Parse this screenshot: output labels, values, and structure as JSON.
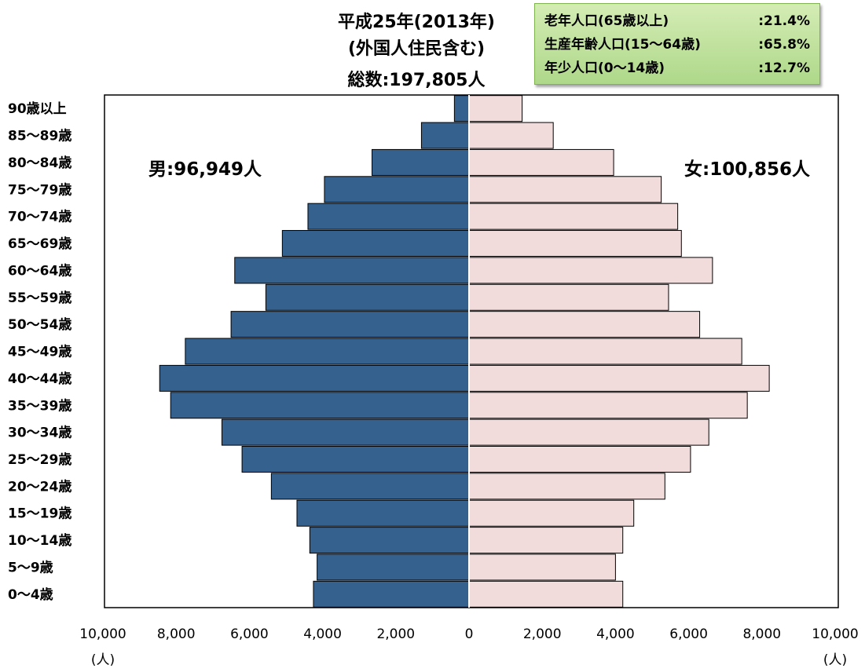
{
  "title": {
    "line1": "平成25年(2013年)",
    "line2": "(外国人住民含む)",
    "line3": "総数:197,805人"
  },
  "stats": [
    {
      "label": "老年人口(65歳以上)",
      "value": ":21.4%"
    },
    {
      "label": "生産年齢人口(15～64歳)",
      "value": ":65.8%"
    },
    {
      "label": "年少人口(0～14歳)",
      "value": ":12.7%"
    }
  ],
  "male_label": "男:96,949人",
  "female_label": "女:100,856人",
  "colors": {
    "male": "#35618f",
    "female": "#f2dbdb"
  },
  "chart_data": {
    "type": "bar",
    "orientation": "horizontal-population-pyramid",
    "categories": [
      "90歳以上",
      "85～89歳",
      "80～84歳",
      "75～79歳",
      "70～74歳",
      "65～69歳",
      "60～64歳",
      "55～59歳",
      "50～54歳",
      "45～49歳",
      "40～44歳",
      "35～39歳",
      "30～34歳",
      "25～29歳",
      "20～24歳",
      "15～19歳",
      "10～14歳",
      "5～9歳",
      "0～4歳"
    ],
    "series": [
      {
        "name": "男",
        "values": [
          400,
          1300,
          2650,
          3950,
          4400,
          5100,
          6400,
          5550,
          6500,
          7750,
          8450,
          8150,
          6750,
          6200,
          5400,
          4700,
          4350,
          4150,
          4250
        ]
      },
      {
        "name": "女",
        "values": [
          1450,
          2300,
          3950,
          5250,
          5700,
          5800,
          6650,
          5450,
          6300,
          7450,
          8200,
          7600,
          6550,
          6050,
          5350,
          4500,
          4200,
          4000,
          4200
        ]
      }
    ],
    "x_ticks": [
      "10,000",
      "8,000",
      "6,000",
      "4,000",
      "2,000",
      "0",
      "2,000",
      "4,000",
      "6,000",
      "8,000",
      "10,000"
    ],
    "x_unit_left": "(人)",
    "x_unit_right": "(人)",
    "xlim": [
      -10000,
      10000
    ],
    "grid": false
  }
}
